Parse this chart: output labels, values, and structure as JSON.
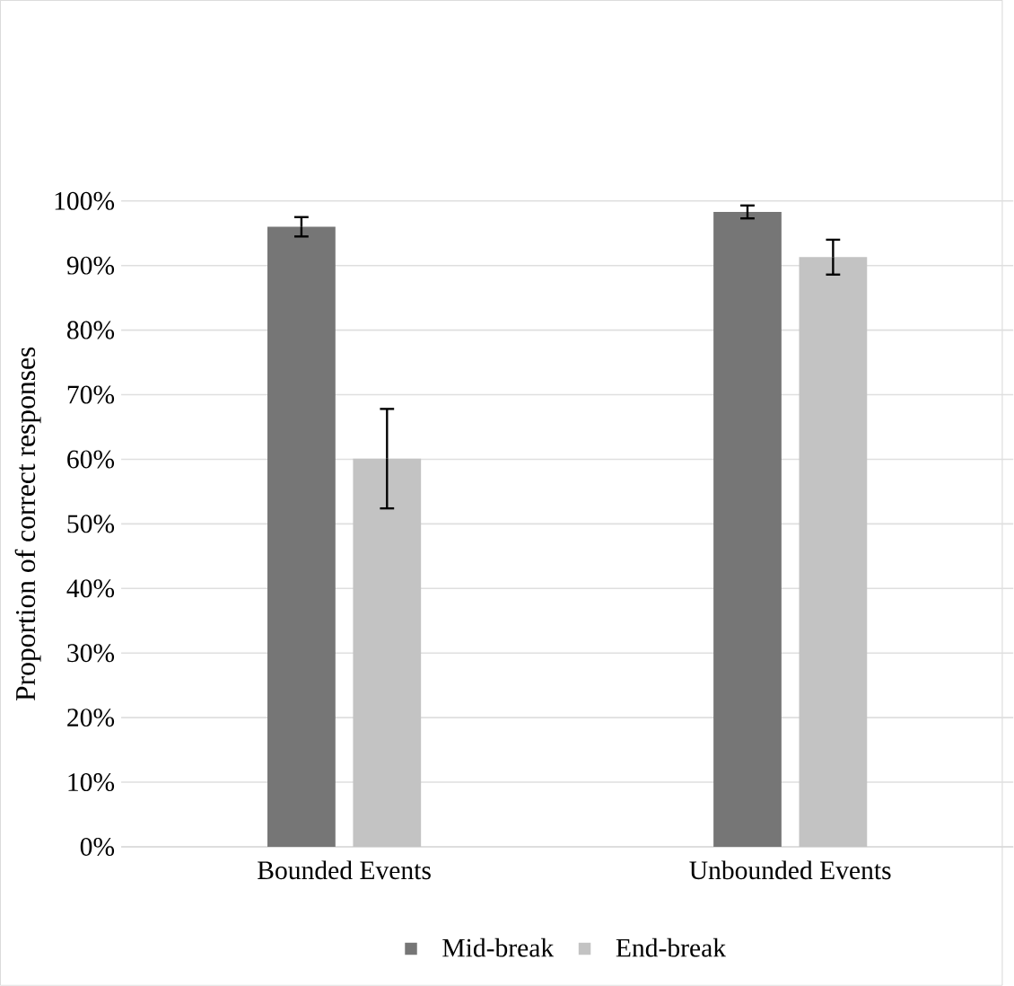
{
  "chart_data": {
    "type": "bar",
    "ylabel": "Proportion of correct responses",
    "categories": [
      "Bounded Events",
      "Unbounded Events"
    ],
    "series": [
      {
        "name": "Mid-break",
        "color": "#767676",
        "values": [
          96,
          98.3
        ],
        "errors": [
          1.5,
          1
        ]
      },
      {
        "name": "End-break",
        "color": "#c3c3c3",
        "values": [
          60.1,
          91.3
        ],
        "errors": [
          7.7,
          2.7
        ]
      }
    ],
    "ylim": [
      0,
      100
    ],
    "yticks": [
      {
        "value": 0,
        "label": "0%"
      },
      {
        "value": 10,
        "label": "10%"
      },
      {
        "value": 20,
        "label": "20%"
      },
      {
        "value": 30,
        "label": "30%"
      },
      {
        "value": 40,
        "label": "40%"
      },
      {
        "value": 50,
        "label": "50%"
      },
      {
        "value": 60,
        "label": "60%"
      },
      {
        "value": 70,
        "label": "70%"
      },
      {
        "value": 80,
        "label": "80%"
      },
      {
        "value": 90,
        "label": "90%"
      },
      {
        "value": 100,
        "label": "100%"
      }
    ],
    "grid": "y",
    "legend": "bottom"
  }
}
